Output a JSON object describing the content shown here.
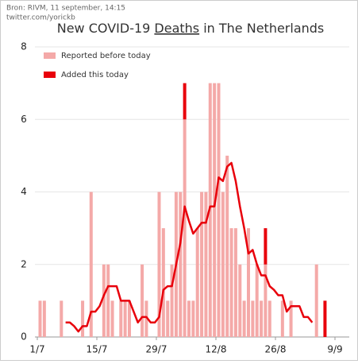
{
  "chart_data": {
    "type": "bar",
    "source": "Bron: RIVM, 11 september, 14:15",
    "credit": "twitter.com/yorickb",
    "title_parts": [
      "New COVID-19 ",
      "Deaths",
      " in The Netherlands"
    ],
    "categories": [
      "1/7",
      null,
      null,
      null,
      null,
      null,
      null,
      null,
      null,
      null,
      null,
      null,
      null,
      null,
      "15/7",
      null,
      null,
      null,
      null,
      null,
      null,
      null,
      null,
      null,
      null,
      null,
      null,
      null,
      "29/7",
      null,
      null,
      null,
      null,
      null,
      null,
      null,
      null,
      null,
      null,
      null,
      null,
      null,
      "12/8",
      null,
      null,
      null,
      null,
      null,
      null,
      null,
      null,
      null,
      null,
      null,
      null,
      null,
      "26/8",
      null,
      null,
      null,
      null,
      null,
      null,
      null,
      null,
      null,
      null,
      null,
      null,
      null,
      "9/9",
      null
    ],
    "series": [
      {
        "name": "Reported before today",
        "color": "#f4a9a8",
        "values": [
          1,
          1,
          0,
          0,
          0,
          1,
          0,
          0,
          0,
          0,
          1,
          0,
          4,
          0,
          0,
          2,
          2,
          1,
          0,
          1,
          1,
          1,
          0,
          0,
          2,
          1,
          0,
          0,
          4,
          3,
          1,
          2,
          4,
          4,
          6,
          1,
          1,
          3,
          4,
          4,
          7,
          7,
          7,
          4,
          5,
          3,
          3,
          2,
          1,
          3,
          1,
          2,
          1,
          2,
          1,
          0,
          0,
          1,
          0,
          1,
          0,
          0,
          0,
          0,
          0,
          2,
          0,
          0,
          0,
          0,
          0,
          0
        ]
      },
      {
        "name": "Added this today",
        "color": "#e8000b",
        "values": [
          0,
          0,
          0,
          0,
          0,
          0,
          0,
          0,
          0,
          0,
          0,
          0,
          0,
          0,
          0,
          0,
          0,
          0,
          0,
          0,
          0,
          0,
          0,
          0,
          0,
          0,
          0,
          0,
          0,
          0,
          0,
          0,
          0,
          0,
          1,
          0,
          0,
          0,
          0,
          0,
          0,
          0,
          0,
          0,
          0,
          0,
          0,
          0,
          0,
          0,
          0,
          0,
          0,
          1,
          0,
          0,
          0,
          0,
          0,
          0,
          0,
          0,
          0,
          0,
          0,
          0,
          0,
          1,
          0,
          0,
          0,
          0
        ]
      },
      {
        "type": "line",
        "color": "#e8000b",
        "values": [
          null,
          null,
          null,
          null,
          null,
          null,
          0.4,
          0.4,
          0.3,
          0.15,
          0.3,
          0.3,
          0.7,
          0.7,
          0.85,
          1.15,
          1.4,
          1.4,
          1.4,
          1.0,
          1.0,
          1.0,
          0.7,
          0.4,
          0.55,
          0.55,
          0.4,
          0.4,
          0.55,
          1.3,
          1.4,
          1.4,
          2.0,
          2.6,
          3.6,
          3.2,
          2.85,
          3.0,
          3.15,
          3.15,
          3.6,
          3.6,
          4.4,
          4.3,
          4.7,
          4.8,
          4.3,
          3.6,
          3.0,
          2.3,
          2.4,
          2.0,
          1.7,
          1.7,
          1.4,
          1.3,
          1.15,
          1.15,
          0.7,
          0.85,
          0.85,
          0.85,
          0.55,
          0.55,
          0.4,
          null,
          null,
          null,
          null,
          null,
          null,
          null
        ]
      }
    ],
    "ylim": [
      0,
      8
    ],
    "yticks": [
      0,
      2,
      4,
      6,
      8
    ],
    "grid": true
  }
}
